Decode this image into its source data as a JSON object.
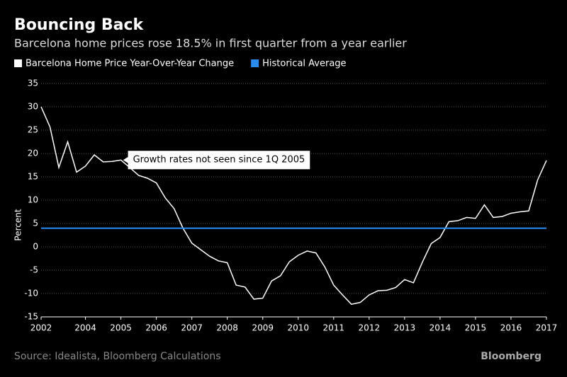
{
  "chart_data": {
    "type": "line",
    "title": "Bouncing Back",
    "subtitle": "Barcelona home prices rose 18.5% in first quarter from a year earlier",
    "y_label": "Percent",
    "source": "Source: Idealista, Bloomberg Calculations",
    "brand": "Bloomberg",
    "annotation": {
      "text": "Growth rates not seen since 1Q 2005",
      "x": 2005.0,
      "y": 18.6
    },
    "x": [
      2002.75,
      2003,
      2003.25,
      2003.5,
      2003.75,
      2004,
      2004.25,
      2004.5,
      2004.75,
      2005,
      2005.25,
      2005.5,
      2005.75,
      2006,
      2006.25,
      2006.5,
      2006.75,
      2007,
      2007.25,
      2007.5,
      2007.75,
      2008,
      2008.25,
      2008.5,
      2008.75,
      2009,
      2009.25,
      2009.5,
      2009.75,
      2010,
      2010.25,
      2010.5,
      2010.75,
      2011,
      2011.25,
      2011.5,
      2011.75,
      2012,
      2012.25,
      2012.5,
      2012.75,
      2013,
      2013.25,
      2013.5,
      2013.75,
      2014,
      2014.25,
      2014.5,
      2014.75,
      2015,
      2015.25,
      2015.5,
      2015.75,
      2016,
      2016.25,
      2016.5,
      2016.75,
      2017
    ],
    "series": [
      {
        "name": "Barcelona Home Price Year-Over-Year Change",
        "color": "#ffffff",
        "values": [
          30,
          25.7,
          17,
          22.5,
          16,
          17.3,
          19.7,
          18.2,
          18.3,
          18.6,
          17,
          15.3,
          14.7,
          13.7,
          10.5,
          8.2,
          4,
          0.8,
          -0.6,
          -2,
          -3,
          -3.4,
          -8.2,
          -8.6,
          -11.2,
          -11,
          -7.3,
          -6.2,
          -3.2,
          -1.8,
          -0.9,
          -1.3,
          -4.3,
          -8.2,
          -10.3,
          -12.3,
          -11.9,
          -10.3,
          -9.4,
          -9.3,
          -8.7,
          -7,
          -7.7,
          -3.3,
          0.7,
          2,
          5.4,
          5.6,
          6.3,
          6.1,
          9,
          6.3,
          6.5,
          7.2,
          7.5,
          7.7,
          14.3,
          18.5
        ]
      },
      {
        "name": "Historical Average",
        "color": "#2a8cf0",
        "value": 4
      }
    ],
    "xlim": [
      2002.75,
      2017
    ],
    "xticks": [
      {
        "value": 2002.75,
        "label": "2002"
      },
      2004,
      2005,
      2006,
      2007,
      2008,
      2009,
      2010,
      2011,
      2012,
      2013,
      2014,
      2015,
      2016,
      2017
    ],
    "ylim": [
      -15,
      35
    ],
    "yticks": [
      -15,
      -10,
      -5,
      0,
      5,
      10,
      15,
      20,
      25,
      30,
      35
    ],
    "grid": true
  }
}
